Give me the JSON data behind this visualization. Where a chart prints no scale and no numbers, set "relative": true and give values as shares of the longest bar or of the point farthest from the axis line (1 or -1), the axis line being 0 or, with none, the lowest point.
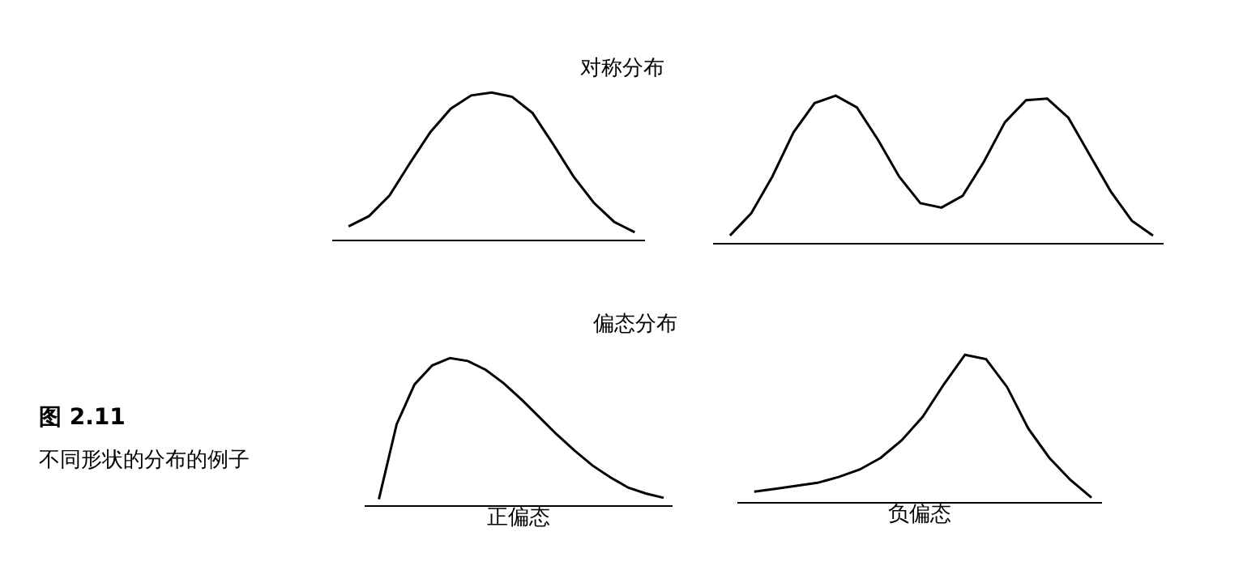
{
  "chart_data": [
    {
      "type": "other",
      "annotations": [
        "对称分布",
        "偏态分布",
        "图 2.11",
        "不同形状的分布的例子"
      ]
    },
    {
      "type": "line",
      "relative": true,
      "marker": "none",
      "line_style": "solid",
      "tick_labels": false,
      "categories": [
        null,
        null,
        null,
        null,
        null,
        null,
        null,
        null,
        null,
        null,
        null,
        null,
        null,
        null,
        null
      ],
      "series": [
        {
          "color": "#000000",
          "values": [
            0.09,
            0.16,
            0.3,
            0.52,
            0.73,
            0.89,
            0.98,
            1,
            0.97,
            0.86,
            0.65,
            0.43,
            0.25,
            0.12,
            0.05
          ]
        }
      ]
    },
    {
      "type": "line",
      "relative": true,
      "marker": "none",
      "line_style": "solid",
      "tick_labels": false,
      "categories": [
        null,
        null,
        null,
        null,
        null,
        null,
        null,
        null,
        null,
        null,
        null,
        null,
        null,
        null,
        null,
        null,
        null,
        null,
        null,
        null,
        null
      ],
      "series": [
        {
          "color": "#000000",
          "values": [
            0.05,
            0.2,
            0.45,
            0.75,
            0.95,
            1,
            0.92,
            0.7,
            0.45,
            0.27,
            0.24,
            0.32,
            0.55,
            0.82,
            0.97,
            0.98,
            0.85,
            0.6,
            0.35,
            0.15,
            0.05
          ]
        }
      ]
    },
    {
      "type": "line",
      "relative": true,
      "xlabel": "正偏态",
      "marker": "none",
      "line_style": "solid",
      "tick_labels": false,
      "categories": [
        null,
        null,
        null,
        null,
        null,
        null,
        null,
        null,
        null,
        null,
        null,
        null,
        null,
        null,
        null,
        null,
        null
      ],
      "series": [
        {
          "color": "#000000",
          "values": [
            0.04,
            0.55,
            0.82,
            0.95,
            1,
            0.98,
            0.92,
            0.83,
            0.72,
            0.6,
            0.48,
            0.37,
            0.27,
            0.19,
            0.12,
            0.08,
            0.05
          ]
        }
      ]
    },
    {
      "type": "line",
      "relative": true,
      "xlabel": "负偏态",
      "marker": "none",
      "line_style": "solid",
      "tick_labels": false,
      "categories": [
        null,
        null,
        null,
        null,
        null,
        null,
        null,
        null,
        null,
        null,
        null,
        null,
        null,
        null,
        null,
        null,
        null
      ],
      "series": [
        {
          "color": "#000000",
          "values": [
            0.07,
            0.09,
            0.11,
            0.13,
            0.17,
            0.22,
            0.3,
            0.42,
            0.58,
            0.8,
            1,
            0.97,
            0.78,
            0.5,
            0.3,
            0.15,
            0.03
          ]
        }
      ]
    }
  ]
}
